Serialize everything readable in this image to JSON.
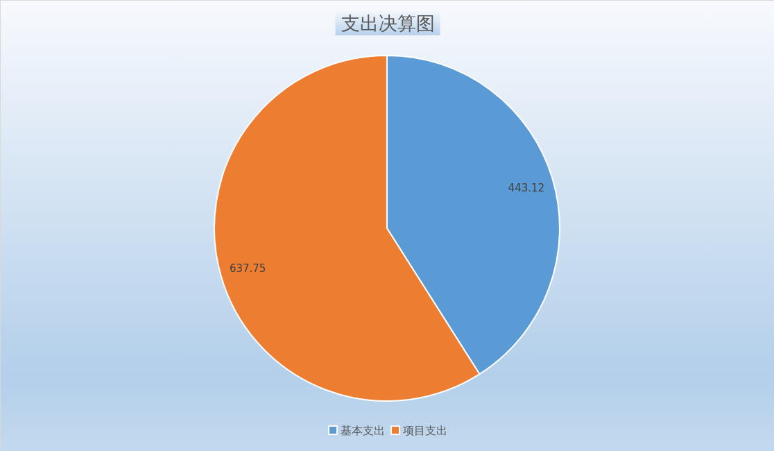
{
  "chart_data": {
    "type": "pie",
    "title": "支出决算图",
    "categories": [
      "基本支出",
      "项目支出"
    ],
    "values": [
      443.12,
      637.75
    ],
    "colors": [
      "#5b9bd5",
      "#ed7d31"
    ],
    "data_labels": true,
    "legend": "bottom"
  }
}
